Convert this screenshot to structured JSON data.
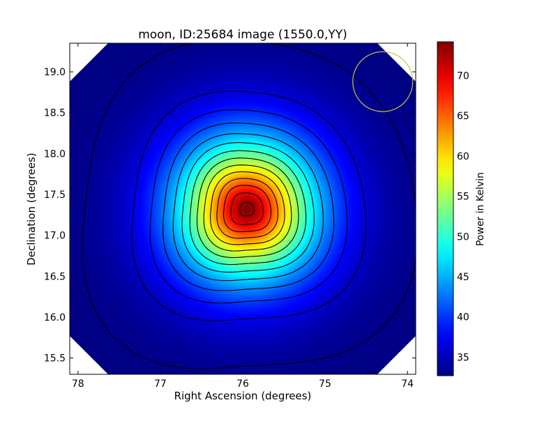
{
  "chart_data": {
    "type": "heatmap",
    "title": "moon, ID:25684 image (1550.0,YY)",
    "xlabel": "Right Ascension (degrees)",
    "ylabel": "Declination (degrees)",
    "xlim": [
      78.1,
      73.9
    ],
    "ylim": [
      15.3,
      19.35
    ],
    "x_axis_inverted": true,
    "x_ticks": [
      {
        "value": 78,
        "label": "78"
      },
      {
        "value": 77,
        "label": "77"
      },
      {
        "value": 76,
        "label": "76"
      },
      {
        "value": 75,
        "label": "75"
      },
      {
        "value": 74,
        "label": "74"
      }
    ],
    "y_ticks": [
      {
        "value": 15.5,
        "label": "15.5"
      },
      {
        "value": 16.0,
        "label": "16.0"
      },
      {
        "value": 16.5,
        "label": "16.5"
      },
      {
        "value": 17.0,
        "label": "17.0"
      },
      {
        "value": 17.5,
        "label": "17.5"
      },
      {
        "value": 18.0,
        "label": "18.0"
      },
      {
        "value": 18.5,
        "label": "18.5"
      },
      {
        "value": 19.0,
        "label": "19.0"
      }
    ],
    "colormap": "jet",
    "colorbar": {
      "label": "Power in Kelvin",
      "range": [
        32.7,
        74.2
      ],
      "ticks": [
        {
          "value": 35,
          "label": "35"
        },
        {
          "value": 40,
          "label": "40"
        },
        {
          "value": 45,
          "label": "45"
        },
        {
          "value": 50,
          "label": "50"
        },
        {
          "value": 55,
          "label": "55"
        },
        {
          "value": 60,
          "label": "60"
        },
        {
          "value": 65,
          "label": "65"
        },
        {
          "value": 70,
          "label": "70"
        }
      ]
    },
    "peak": {
      "ra": 75.95,
      "dec": 17.32,
      "value": 74.2
    },
    "background_value": 32.7,
    "contour_levels": [
      33.5,
      37,
      40,
      43,
      46,
      49,
      52,
      55,
      58,
      61,
      64,
      67,
      70,
      73
    ],
    "beam_circle": {
      "ra": 74.3,
      "dec": 18.88,
      "color": "#c8c832"
    },
    "colors": {
      "contour": "#000000",
      "axes": "#000000"
    }
  }
}
